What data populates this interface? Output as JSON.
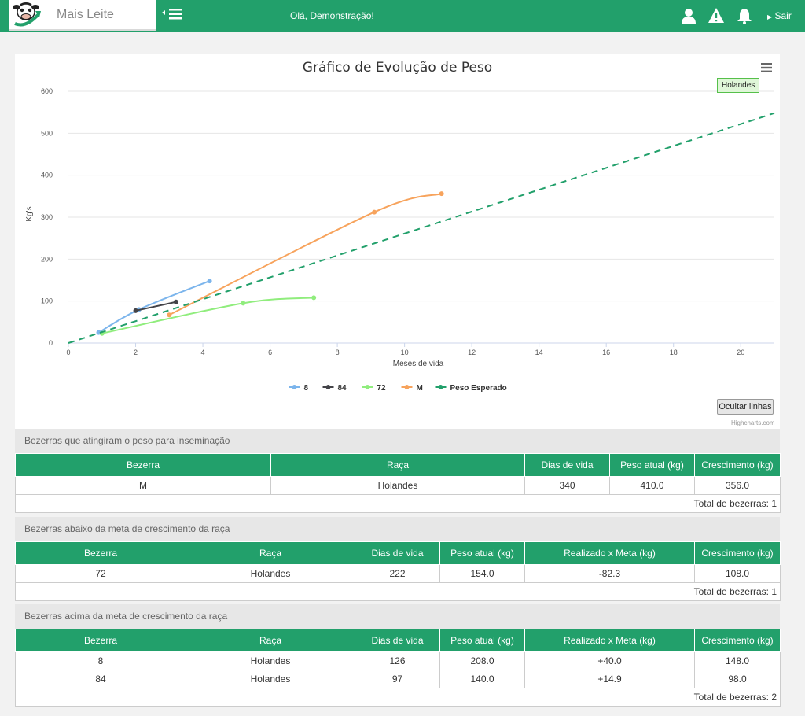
{
  "header": {
    "brand": "Mais Leite",
    "greeting": "Olá, Demonstração!",
    "logout_label": "Sair",
    "icons": [
      "user-icon",
      "alert-icon",
      "bell-icon"
    ]
  },
  "chart_panel": {
    "badge": "Holandes",
    "hide_lines_label": "Ocultar linhas",
    "credits": "Highcharts.com"
  },
  "chart_data": {
    "type": "line",
    "title": "Gráfico de Evolução de Peso",
    "xlabel": "Meses de vida",
    "ylabel": "Kg's",
    "xlim": [
      0,
      21
    ],
    "ylim": [
      0,
      600
    ],
    "xticks": [
      0,
      2,
      4,
      6,
      8,
      10,
      12,
      14,
      16,
      18,
      20
    ],
    "yticks": [
      0,
      100,
      200,
      300,
      400,
      500,
      600
    ],
    "legend_position": "bottom-center",
    "grid": true,
    "series": [
      {
        "name": "8",
        "color": "#7cb5ec",
        "dashed": false,
        "points": [
          [
            0.9,
            25
          ],
          [
            2.1,
            80
          ],
          [
            4.2,
            148
          ]
        ]
      },
      {
        "name": "84",
        "color": "#434348",
        "dashed": false,
        "points": [
          [
            2.0,
            77
          ],
          [
            3.2,
            98
          ]
        ]
      },
      {
        "name": "72",
        "color": "#90ed7d",
        "dashed": false,
        "points": [
          [
            1.0,
            23
          ],
          [
            5.2,
            95
          ],
          [
            7.3,
            108
          ]
        ]
      },
      {
        "name": "M",
        "color": "#f7a35c",
        "dashed": false,
        "points": [
          [
            3.0,
            67
          ],
          [
            9.1,
            312
          ],
          [
            11.1,
            356
          ]
        ]
      },
      {
        "name": "Peso Esperado",
        "color": "#22a06b",
        "dashed": true,
        "points": [
          [
            0,
            0
          ],
          [
            21,
            548
          ]
        ]
      }
    ]
  },
  "sections": [
    {
      "title": "Bezerras que atingiram o peso para inseminação",
      "columns": [
        "Bezerra",
        "Raça",
        "Dias de vida",
        "Peso atual (kg)",
        "Crescimento (kg)"
      ],
      "rows": [
        [
          "M",
          "Holandes",
          "340",
          "410.0",
          "356.0"
        ]
      ],
      "total": "Total de bezerras: 1"
    },
    {
      "title": "Bezerras abaixo da meta de crescimento da raça",
      "columns": [
        "Bezerra",
        "Raça",
        "Dias de vida",
        "Peso atual (kg)",
        "Realizado x Meta (kg)",
        "Crescimento (kg)"
      ],
      "rows": [
        [
          "72",
          "Holandes",
          "222",
          "154.0",
          "-82.3",
          "108.0"
        ]
      ],
      "total": "Total de bezerras: 1"
    },
    {
      "title": "Bezerras acima da meta de crescimento da raça",
      "columns": [
        "Bezerra",
        "Raça",
        "Dias de vida",
        "Peso atual (kg)",
        "Realizado x Meta (kg)",
        "Crescimento (kg)"
      ],
      "rows": [
        [
          "8",
          "Holandes",
          "126",
          "208.0",
          "+40.0",
          "148.0"
        ],
        [
          "84",
          "Holandes",
          "97",
          "140.0",
          "+14.9",
          "98.0"
        ]
      ],
      "total": "Total de bezerras: 2"
    }
  ]
}
